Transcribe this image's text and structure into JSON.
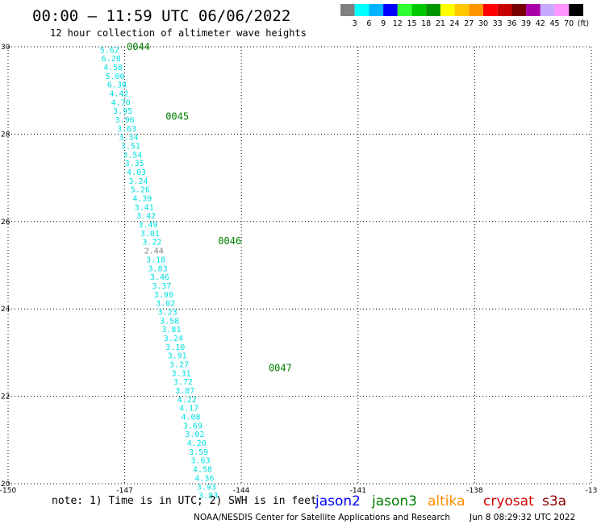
{
  "header": {
    "title": "00:00 – 11:59 UTC 06/06/2022",
    "subtitle": "12 hour collection of altimeter wave heights"
  },
  "legend_scale": {
    "labels": [
      "3",
      "6",
      "9",
      "12",
      "15",
      "18",
      "21",
      "24",
      "27",
      "30",
      "33",
      "36",
      "39",
      "42",
      "45",
      "70",
      "(ft)"
    ],
    "colors": [
      "#808080",
      "#00ffff",
      "#00b4ff",
      "#0000ff",
      "#32ff32",
      "#00c800",
      "#009600",
      "#ffff00",
      "#ffc800",
      "#ff9600",
      "#ff0000",
      "#c80000",
      "#780000",
      "#aa00aa",
      "#c8aaff",
      "#ff96ff",
      "#000000"
    ]
  },
  "footer": {
    "note": "note:  1) Time is in UTC;  2) SWH is in feet",
    "missions": [
      {
        "name": "jason2",
        "color": "#0000ff"
      },
      {
        "name": "jason3",
        "color": "#008000"
      },
      {
        "name": "altika",
        "color": "#ff8c00"
      },
      {
        "name": "cryosat",
        "color": "#cc0000"
      },
      {
        "name": "s3a",
        "color": "#8b0000"
      }
    ],
    "credit": "NOAA/NESDIS Center for Satellite Applications and Research",
    "generated": "Jun  8 08:29:32 UTC 2022"
  },
  "chart_data": {
    "type": "scatter",
    "x_ticks": [
      "-150",
      "-147",
      "-144",
      "-141",
      "-138",
      "-13"
    ],
    "y_ticks": [
      "20",
      "22",
      "24",
      "26",
      "28",
      "30"
    ],
    "xlim": [
      -150,
      -135
    ],
    "ylim": [
      20,
      30
    ],
    "grid": true,
    "track_color": "#00e0e0",
    "low_color": "#808080",
    "time_color": "#008000",
    "points": [
      {
        "lon": -147.39,
        "lat": 29.94,
        "swh": "5.62"
      },
      {
        "lon": -147.35,
        "lat": 29.74,
        "swh": "6.28"
      },
      {
        "lon": -147.3,
        "lat": 29.54,
        "swh": "4.58"
      },
      {
        "lon": -147.25,
        "lat": 29.34,
        "swh": "5.00"
      },
      {
        "lon": -147.2,
        "lat": 29.14,
        "swh": "6.30"
      },
      {
        "lon": -147.15,
        "lat": 28.94,
        "swh": "4.42"
      },
      {
        "lon": -147.1,
        "lat": 28.74,
        "swh": "4.70"
      },
      {
        "lon": -147.05,
        "lat": 28.54,
        "swh": "3.95"
      },
      {
        "lon": -147.0,
        "lat": 28.34,
        "swh": "3.96"
      },
      {
        "lon": -146.95,
        "lat": 28.14,
        "swh": "3.63"
      },
      {
        "lon": -146.9,
        "lat": 27.94,
        "swh": "3.34"
      },
      {
        "lon": -146.85,
        "lat": 27.74,
        "swh": "3.51"
      },
      {
        "lon": -146.8,
        "lat": 27.54,
        "swh": "3.54"
      },
      {
        "lon": -146.75,
        "lat": 27.34,
        "swh": "3.35"
      },
      {
        "lon": -146.7,
        "lat": 27.14,
        "swh": "4.03"
      },
      {
        "lon": -146.65,
        "lat": 26.94,
        "swh": "3.24"
      },
      {
        "lon": -146.6,
        "lat": 26.74,
        "swh": "5.26"
      },
      {
        "lon": -146.55,
        "lat": 26.54,
        "swh": "4.39"
      },
      {
        "lon": -146.5,
        "lat": 26.34,
        "swh": "3.41"
      },
      {
        "lon": -146.45,
        "lat": 26.14,
        "swh": "3.42"
      },
      {
        "lon": -146.4,
        "lat": 25.94,
        "swh": "3.49"
      },
      {
        "lon": -146.35,
        "lat": 25.74,
        "swh": "3.01"
      },
      {
        "lon": -146.3,
        "lat": 25.54,
        "swh": "3.22"
      },
      {
        "lon": -146.25,
        "lat": 25.34,
        "swh": "2.44"
      },
      {
        "lon": -146.2,
        "lat": 25.14,
        "swh": "3.18"
      },
      {
        "lon": -146.15,
        "lat": 24.94,
        "swh": "3.83"
      },
      {
        "lon": -146.1,
        "lat": 24.74,
        "swh": "3.46"
      },
      {
        "lon": -146.05,
        "lat": 24.54,
        "swh": "3.37"
      },
      {
        "lon": -146.0,
        "lat": 24.34,
        "swh": "3.90"
      },
      {
        "lon": -145.95,
        "lat": 24.14,
        "swh": "3.02"
      },
      {
        "lon": -145.9,
        "lat": 23.94,
        "swh": "3.23"
      },
      {
        "lon": -145.85,
        "lat": 23.74,
        "swh": "3.58"
      },
      {
        "lon": -145.8,
        "lat": 23.54,
        "swh": "3.81"
      },
      {
        "lon": -145.75,
        "lat": 23.34,
        "swh": "3.24"
      },
      {
        "lon": -145.7,
        "lat": 23.14,
        "swh": "3.10"
      },
      {
        "lon": -145.65,
        "lat": 22.94,
        "swh": "3.91"
      },
      {
        "lon": -145.6,
        "lat": 22.74,
        "swh": "3.27"
      },
      {
        "lon": -145.55,
        "lat": 22.54,
        "swh": "3.31"
      },
      {
        "lon": -145.5,
        "lat": 22.34,
        "swh": "3.72"
      },
      {
        "lon": -145.45,
        "lat": 22.14,
        "swh": "3.87"
      },
      {
        "lon": -145.4,
        "lat": 21.94,
        "swh": "4.22"
      },
      {
        "lon": -145.35,
        "lat": 21.74,
        "swh": "4.17"
      },
      {
        "lon": -145.3,
        "lat": 21.54,
        "swh": "4.08"
      },
      {
        "lon": -145.25,
        "lat": 21.34,
        "swh": "3.69"
      },
      {
        "lon": -145.2,
        "lat": 21.14,
        "swh": "3.02"
      },
      {
        "lon": -145.15,
        "lat": 20.94,
        "swh": "4.20"
      },
      {
        "lon": -145.1,
        "lat": 20.74,
        "swh": "3.59"
      },
      {
        "lon": -145.05,
        "lat": 20.54,
        "swh": "3.63"
      },
      {
        "lon": -145.0,
        "lat": 20.34,
        "swh": "4.58"
      },
      {
        "lon": -144.95,
        "lat": 20.14,
        "swh": "4.36"
      },
      {
        "lon": -144.9,
        "lat": 19.94,
        "swh": "3.93"
      },
      {
        "lon": -144.85,
        "lat": 19.74,
        "swh": "3.83"
      }
    ],
    "time_labels": [
      {
        "lon": -146.65,
        "lat": 30.0,
        "text": "0044"
      },
      {
        "lon": -145.65,
        "lat": 28.4,
        "text": "0045"
      },
      {
        "lon": -144.3,
        "lat": 25.55,
        "text": "0046"
      },
      {
        "lon": -143.0,
        "lat": 22.65,
        "text": "0047"
      }
    ]
  }
}
